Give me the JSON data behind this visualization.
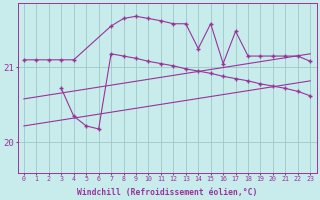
{
  "xlabel": "Windchill (Refroidissement éolien,°C)",
  "bg_color": "#c8ecec",
  "grid_color": "#a0c8c8",
  "line_color": "#993399",
  "xlim": [
    -0.5,
    23.5
  ],
  "ylim": [
    19.6,
    21.85
  ],
  "yticks": [
    20,
    21
  ],
  "xticks": [
    0,
    1,
    2,
    3,
    4,
    5,
    6,
    7,
    8,
    9,
    10,
    11,
    12,
    13,
    14,
    15,
    16,
    17,
    18,
    19,
    20,
    21,
    22,
    23
  ],
  "series1_x": [
    0,
    1,
    2,
    3,
    4,
    7,
    8,
    9,
    10,
    11,
    12,
    13,
    14,
    15,
    16,
    17,
    18,
    19,
    20,
    21,
    22,
    23
  ],
  "series1_y": [
    21.1,
    21.1,
    21.1,
    21.1,
    21.1,
    21.55,
    21.65,
    21.68,
    21.65,
    21.62,
    21.58,
    21.58,
    21.25,
    21.58,
    21.05,
    21.48,
    21.15,
    21.15,
    21.15,
    21.15,
    21.15,
    21.08
  ],
  "series2_x": [
    3,
    4,
    5,
    6,
    7,
    8,
    9,
    10,
    11,
    12,
    13,
    14,
    15,
    16,
    17,
    18,
    19,
    20,
    21,
    22,
    23
  ],
  "series2_y": [
    20.72,
    20.35,
    20.22,
    20.18,
    21.18,
    21.15,
    21.12,
    21.08,
    21.05,
    21.02,
    20.98,
    20.95,
    20.92,
    20.88,
    20.85,
    20.82,
    20.78,
    20.75,
    20.72,
    20.68,
    20.62
  ],
  "series3_x": [
    0,
    23
  ],
  "series3_y": [
    20.58,
    21.18
  ],
  "series4_x": [
    0,
    23
  ],
  "series4_y": [
    20.22,
    20.82
  ]
}
